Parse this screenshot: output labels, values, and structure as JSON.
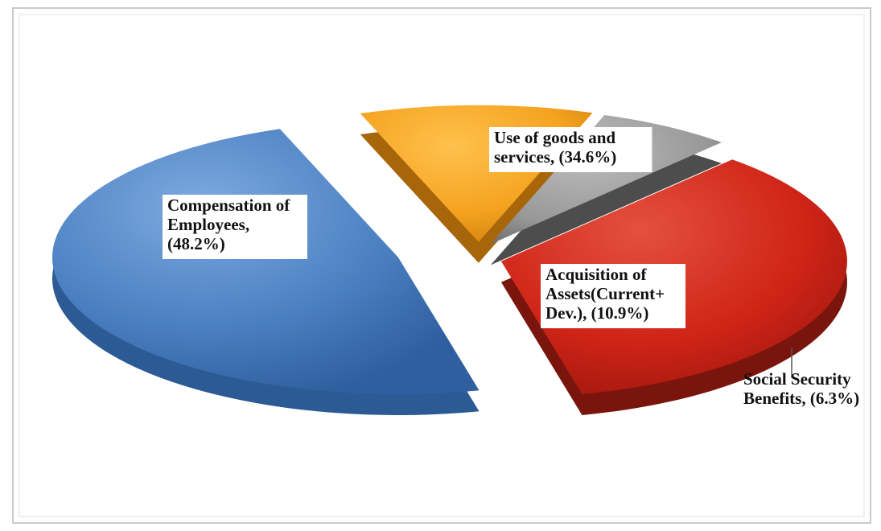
{
  "chart_data": {
    "type": "pie",
    "slices": [
      {
        "label_lines": [
          "Compensation of",
          "Employees,",
          "(48.2%)"
        ],
        "value": 48.2,
        "color": "#4a7fc1",
        "dark": "#2c5a94",
        "exploded": false
      },
      {
        "label_lines": [
          "Use of goods and",
          "services, (34.6%)"
        ],
        "value": 34.6,
        "color": "#d32a1c",
        "dark": "#7a150d",
        "exploded": true
      },
      {
        "label_lines": [
          "Social Security",
          "Benefits, (6.3%)"
        ],
        "value": 6.3,
        "color": "#9a9a9a",
        "dark": "#4d4d4d",
        "exploded": true
      },
      {
        "label_lines": [
          "Acquisition of",
          "Assets(Current+",
          "Dev.), (10.9%)"
        ],
        "value": 10.9,
        "color": "#f5a320",
        "dark": "#a8660b",
        "exploded": true
      }
    ],
    "style": "3d-exploded-pie"
  }
}
